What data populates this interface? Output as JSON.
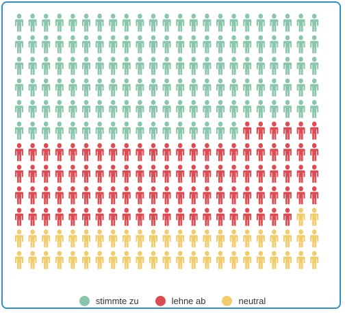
{
  "chart_data": {
    "type": "waffle",
    "grid": {
      "columns": 23,
      "rows": 12
    },
    "categories": [
      "stimmte zu",
      "lehne ab",
      "neutral"
    ],
    "values": [
      132,
      96,
      48
    ],
    "colors": [
      "#8ac6ab",
      "#dd4c52",
      "#f2cb6b"
    ],
    "legend_position": "bottom-center"
  }
}
